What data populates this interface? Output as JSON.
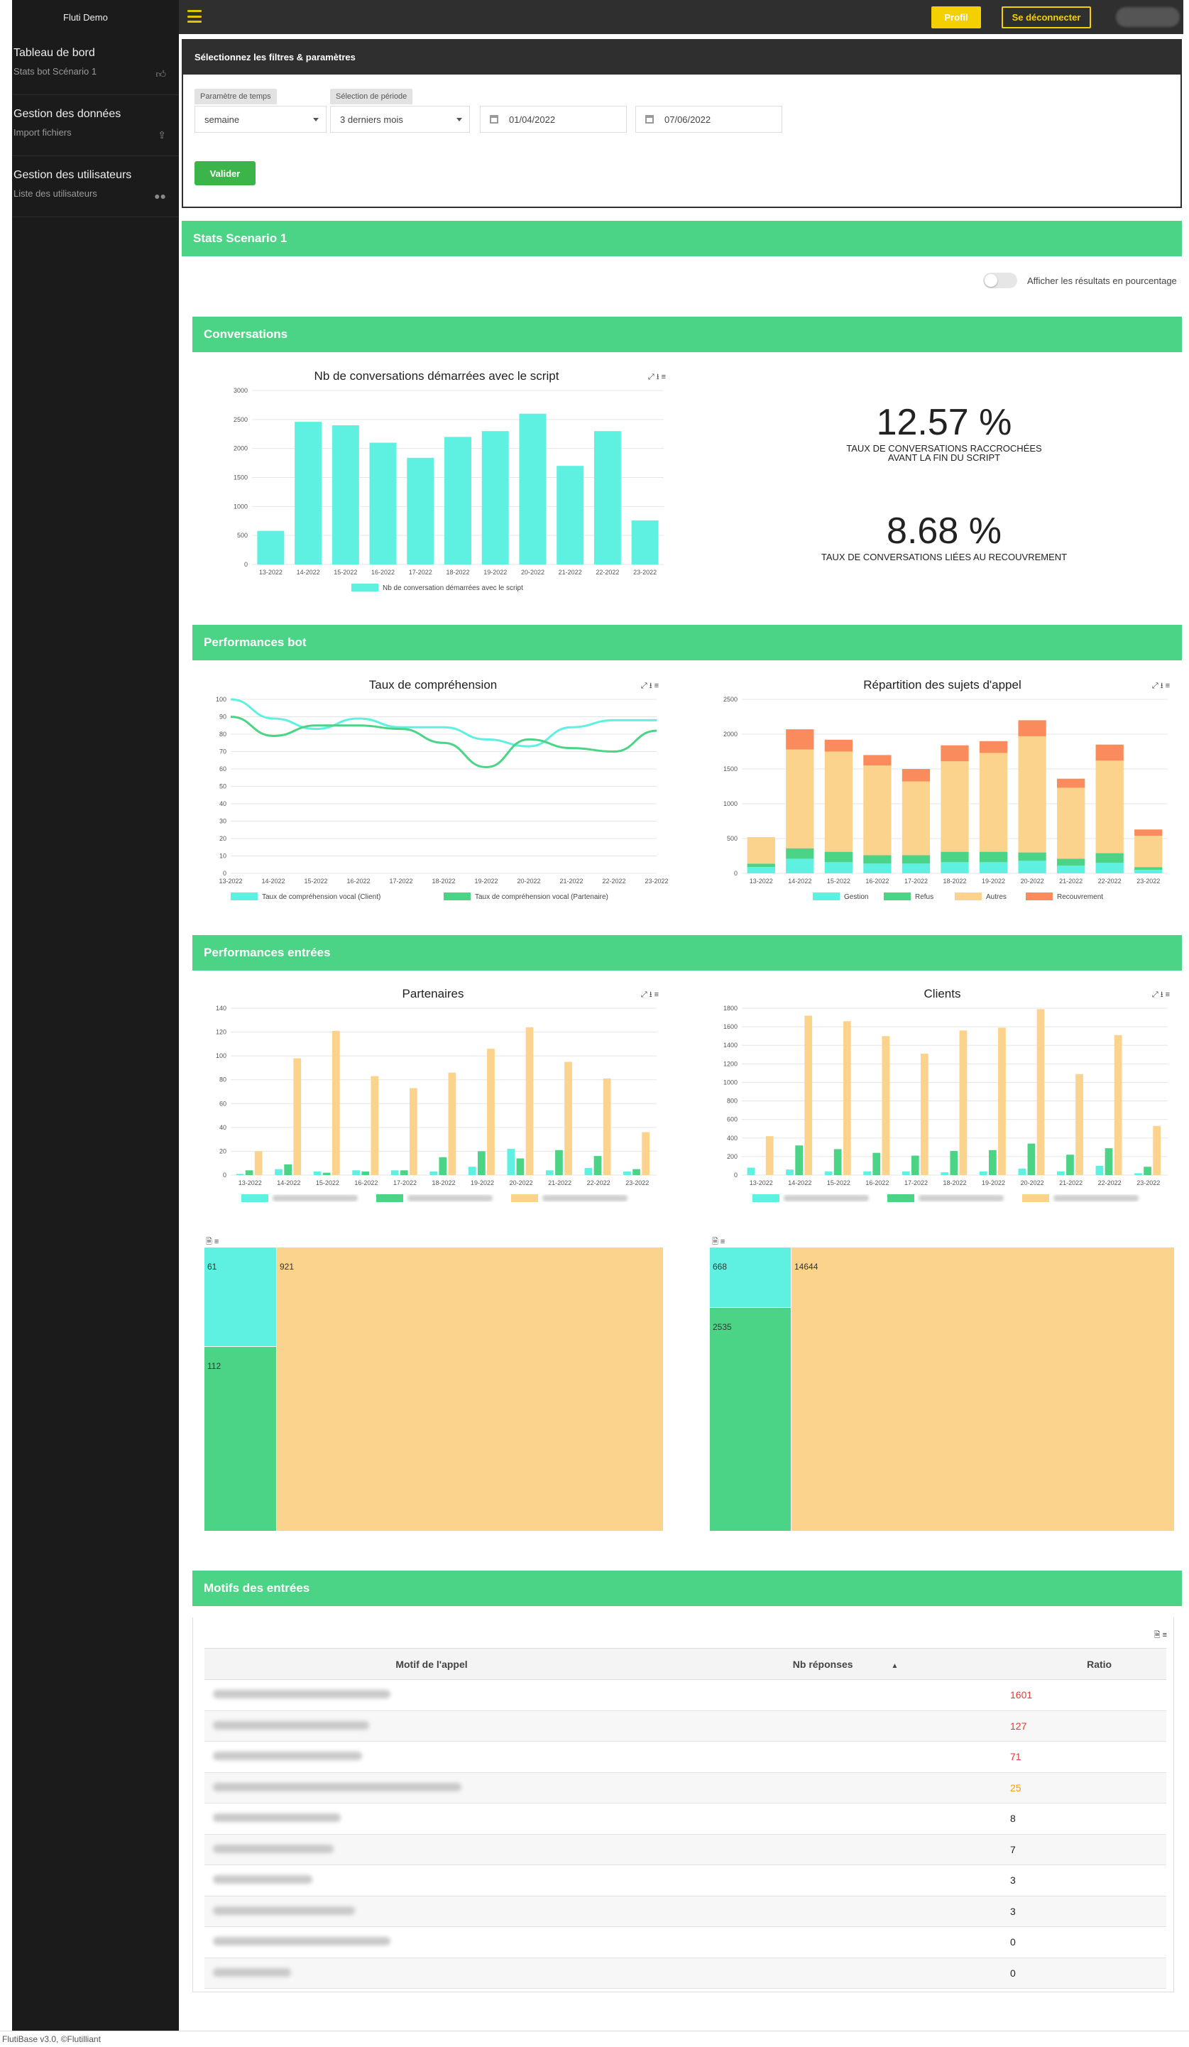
{
  "topbar": {
    "app_name": "Fluti Demo",
    "profile_label": "Profil",
    "logout_label": "Se déconnecter"
  },
  "sidebar": {
    "groups": [
      {
        "title": "Tableau de bord",
        "sub": "Stats bot Scénario 1",
        "icon": "thumbs-up-icon"
      },
      {
        "title": "Gestion des données",
        "sub": "Import fichiers",
        "icon": "upload-icon"
      },
      {
        "title": "Gestion des utilisateurs",
        "sub": "Liste des utilisateurs",
        "icon": "users-icon"
      }
    ]
  },
  "filters": {
    "header": "Sélectionnez les filtres & paramètres",
    "time_param_label": "Paramètre de temps",
    "time_param_value": "semaine",
    "period_label": "Sélection de période",
    "period_value": "3 derniers mois",
    "date_start": "01/04/2022",
    "date_end": "07/06/2022",
    "submit_label": "Valider"
  },
  "page_title": "Stats Scenario 1",
  "percent_toggle_label": "Afficher les résultats en pourcentage",
  "sections": {
    "conversations": "Conversations",
    "performances_bot": "Performances bot",
    "performances_entrees": "Performances entrées",
    "motifs": "Motifs des entrées"
  },
  "kpis": [
    {
      "value": "12.57 %",
      "label_line1": "TAUX DE CONVERSATIONS RACCROCHÉES",
      "label_line2": "AVANT LA FIN DU SCRIPT"
    },
    {
      "value": "8.68 %",
      "label_line1": "TAUX DE CONVERSATIONS LIÉES AU RECOUVREMENT",
      "label_line2": ""
    }
  ],
  "colors": {
    "cyan": "#5ef0e0",
    "green": "#4cd486",
    "sand": "#fbd38d",
    "orange": "#f98b5c"
  },
  "chart_data": [
    {
      "id": "conversations",
      "type": "bar",
      "title": "Nb de conversations démarrées avec le script",
      "categories": [
        "13-2022",
        "14-2022",
        "15-2022",
        "16-2022",
        "17-2022",
        "18-2022",
        "19-2022",
        "20-2022",
        "21-2022",
        "22-2022",
        "23-2022"
      ],
      "series": [
        {
          "name": "Nb de conversation démarrées avec le script",
          "values": [
            580,
            2460,
            2400,
            2100,
            1840,
            2200,
            2300,
            2600,
            1700,
            2300,
            760
          ],
          "color": "#5ef0e0"
        }
      ],
      "ylim": [
        0,
        3000
      ],
      "yticks": [
        0,
        500,
        1000,
        1500,
        2000,
        2500,
        3000
      ],
      "legend": "bottom"
    },
    {
      "id": "comprehension",
      "type": "line",
      "title": "Taux de compréhension",
      "categories": [
        "13-2022",
        "14-2022",
        "15-2022",
        "16-2022",
        "17-2022",
        "18-2022",
        "19-2022",
        "20-2022",
        "21-2022",
        "22-2022",
        "23-2022"
      ],
      "series": [
        {
          "name": "Taux de compréhension vocal (Client)",
          "values": [
            100,
            89,
            83,
            89,
            84,
            84,
            77,
            73,
            84,
            88,
            88
          ],
          "color": "#5ef0e0"
        },
        {
          "name": "Taux de compréhension vocal (Partenaire)",
          "values": [
            90,
            79,
            85,
            85,
            83,
            75,
            61,
            77,
            72,
            70,
            82
          ],
          "color": "#4cd486"
        }
      ],
      "ylim": [
        0,
        100
      ],
      "yticks": [
        0,
        10,
        20,
        30,
        40,
        50,
        60,
        70,
        80,
        90,
        100
      ],
      "legend": "bottom"
    },
    {
      "id": "sujets",
      "type": "bar",
      "stacked": true,
      "title": "Répartition des sujets d'appel",
      "categories": [
        "13-2022",
        "14-2022",
        "15-2022",
        "16-2022",
        "17-2022",
        "18-2022",
        "19-2022",
        "20-2022",
        "21-2022",
        "22-2022",
        "23-2022"
      ],
      "series": [
        {
          "name": "Gestion",
          "values": [
            90,
            210,
            160,
            140,
            140,
            160,
            160,
            180,
            110,
            150,
            50
          ],
          "color": "#5ef0e0"
        },
        {
          "name": "Refus",
          "values": [
            50,
            150,
            150,
            120,
            120,
            150,
            150,
            120,
            100,
            140,
            40
          ],
          "color": "#4cd486"
        },
        {
          "name": "Autres",
          "values": [
            380,
            1420,
            1440,
            1290,
            1060,
            1300,
            1420,
            1670,
            1020,
            1330,
            450
          ],
          "color": "#fbd38d"
        },
        {
          "name": "Recouvrement",
          "values": [
            0,
            290,
            170,
            150,
            180,
            230,
            170,
            230,
            130,
            230,
            90
          ],
          "color": "#f98b5c"
        }
      ],
      "ylim": [
        0,
        2500
      ],
      "yticks": [
        0,
        500,
        1000,
        1500,
        2000,
        2500
      ],
      "legend": "bottom"
    },
    {
      "id": "partenaires",
      "type": "bar",
      "title": "Partenaires",
      "categories": [
        "13-2022",
        "14-2022",
        "15-2022",
        "16-2022",
        "17-2022",
        "18-2022",
        "19-2022",
        "20-2022",
        "21-2022",
        "22-2022",
        "23-2022"
      ],
      "series": [
        {
          "name": "",
          "values": [
            1,
            5,
            3,
            4,
            4,
            3,
            7,
            22,
            4,
            6,
            3
          ],
          "color": "#5ef0e0"
        },
        {
          "name": "",
          "values": [
            4,
            9,
            2,
            3,
            4,
            15,
            20,
            14,
            21,
            16,
            5
          ],
          "color": "#4cd486"
        },
        {
          "name": "",
          "values": [
            20,
            98,
            121,
            83,
            73,
            86,
            106,
            124,
            95,
            81,
            36
          ],
          "color": "#fbd38d"
        }
      ],
      "ylim": [
        0,
        140
      ],
      "yticks": [
        0,
        20,
        40,
        60,
        80,
        100,
        120,
        140
      ],
      "legend": "bottom"
    },
    {
      "id": "clients",
      "type": "bar",
      "title": "Clients",
      "categories": [
        "13-2022",
        "14-2022",
        "15-2022",
        "16-2022",
        "17-2022",
        "18-2022",
        "19-2022",
        "20-2022",
        "21-2022",
        "22-2022",
        "23-2022"
      ],
      "series": [
        {
          "name": "",
          "values": [
            80,
            60,
            40,
            40,
            40,
            30,
            40,
            70,
            40,
            100,
            20
          ],
          "color": "#5ef0e0"
        },
        {
          "name": "",
          "values": [
            0,
            320,
            280,
            240,
            210,
            260,
            270,
            340,
            220,
            290,
            90
          ],
          "color": "#4cd486"
        },
        {
          "name": "",
          "values": [
            420,
            1720,
            1660,
            1500,
            1310,
            1560,
            1590,
            1790,
            1090,
            1510,
            530
          ],
          "color": "#fbd38d"
        }
      ],
      "ylim": [
        0,
        1800
      ],
      "yticks": [
        0,
        200,
        400,
        600,
        800,
        1000,
        1200,
        1400,
        1600,
        1800
      ],
      "legend": "bottom"
    }
  ],
  "treemaps": [
    {
      "cells": [
        {
          "label": "",
          "value": "61",
          "color": "#5ef0e0"
        },
        {
          "label": "",
          "value": "112",
          "color": "#4cd486"
        },
        {
          "label": "",
          "value": "921",
          "color": "#fbd38d"
        }
      ]
    },
    {
      "cells": [
        {
          "label": "",
          "value": "668",
          "color": "#5ef0e0"
        },
        {
          "label": "",
          "value": "2535",
          "color": "#4cd486"
        },
        {
          "label": "",
          "value": "14644",
          "color": "#fbd38d"
        }
      ]
    }
  ],
  "motifs_table": {
    "headers": [
      "Motif de l'appel",
      "Nb réponses",
      "Ratio"
    ],
    "rows": [
      {
        "count": "1601",
        "color": "#e53935"
      },
      {
        "count": "127",
        "color": "#e53935"
      },
      {
        "count": "71",
        "color": "#e53935"
      },
      {
        "count": "25",
        "color": "#f59e0b"
      },
      {
        "count": "8",
        "color": "#222222"
      },
      {
        "count": "7",
        "color": "#222222"
      },
      {
        "count": "3",
        "color": "#222222"
      },
      {
        "count": "3",
        "color": "#222222"
      },
      {
        "count": "0",
        "color": "#222222"
      },
      {
        "count": "0",
        "color": "#222222"
      }
    ]
  },
  "footer": "FlutiBase v3.0, ©Flutilliant"
}
